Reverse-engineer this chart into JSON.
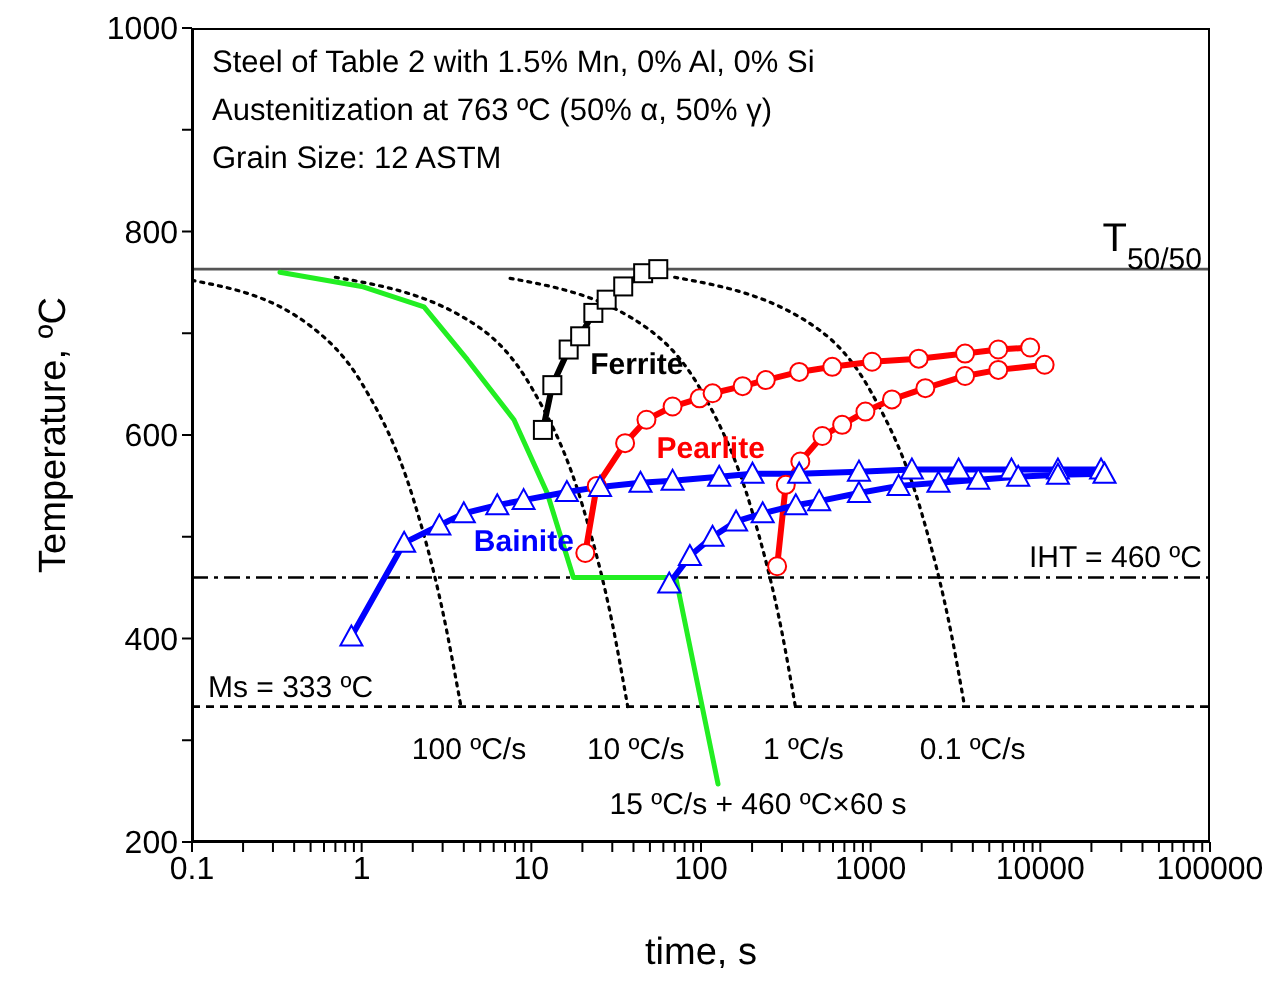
{
  "chart_data": {
    "type": "line",
    "xlabel": "time, s",
    "ylabel": "Temperature, ºC",
    "log": "x",
    "grid": false,
    "legend": false,
    "xlim": [
      0.1,
      100000
    ],
    "ylim": [
      200,
      1000
    ],
    "xticks": [
      0.1,
      {
        "value": 0.2,
        "label": null
      },
      {
        "value": 0.3,
        "label": null
      },
      {
        "value": 0.4,
        "label": null
      },
      {
        "value": 0.5,
        "label": null
      },
      {
        "value": 0.6,
        "label": null
      },
      {
        "value": 0.7,
        "label": null
      },
      {
        "value": 0.8,
        "label": null
      },
      {
        "value": 0.9,
        "label": null
      },
      1,
      {
        "value": 2,
        "label": null
      },
      {
        "value": 3,
        "label": null
      },
      {
        "value": 4,
        "label": null
      },
      {
        "value": 5,
        "label": null
      },
      {
        "value": 6,
        "label": null
      },
      {
        "value": 7,
        "label": null
      },
      {
        "value": 8,
        "label": null
      },
      {
        "value": 9,
        "label": null
      },
      10,
      {
        "value": 20,
        "label": null
      },
      {
        "value": 30,
        "label": null
      },
      {
        "value": 40,
        "label": null
      },
      {
        "value": 50,
        "label": null
      },
      {
        "value": 60,
        "label": null
      },
      {
        "value": 70,
        "label": null
      },
      {
        "value": 80,
        "label": null
      },
      {
        "value": 90,
        "label": null
      },
      100,
      {
        "value": 200,
        "label": null
      },
      {
        "value": 300,
        "label": null
      },
      {
        "value": 400,
        "label": null
      },
      {
        "value": 500,
        "label": null
      },
      {
        "value": 600,
        "label": null
      },
      {
        "value": 700,
        "label": null
      },
      {
        "value": 800,
        "label": null
      },
      {
        "value": 900,
        "label": null
      },
      1000,
      {
        "value": 2000,
        "label": null
      },
      {
        "value": 3000,
        "label": null
      },
      {
        "value": 4000,
        "label": null
      },
      {
        "value": 5000,
        "label": null
      },
      {
        "value": 6000,
        "label": null
      },
      {
        "value": 7000,
        "label": null
      },
      {
        "value": 8000,
        "label": null
      },
      {
        "value": 9000,
        "label": null
      },
      10000,
      {
        "value": 20000,
        "label": null
      },
      {
        "value": 30000,
        "label": null
      },
      {
        "value": 40000,
        "label": null
      },
      {
        "value": 50000,
        "label": null
      },
      {
        "value": 60000,
        "label": null
      },
      {
        "value": 70000,
        "label": null
      },
      {
        "value": 80000,
        "label": null
      },
      {
        "value": 90000,
        "label": null
      },
      100000
    ],
    "yticks": [
      200,
      {
        "value": 300,
        "label": null
      },
      400,
      {
        "value": 500,
        "label": null
      },
      600,
      {
        "value": 700,
        "label": null
      },
      800,
      {
        "value": 900,
        "label": null
      },
      1000
    ],
    "series": [
      {
        "type": "line",
        "name": "100 ºC/s",
        "color": "#000000",
        "line_style": "dotted",
        "marker": "none",
        "x": [
          0.1,
          0.5,
          1,
          2,
          3,
          3.85
        ],
        "values": [
          752,
          707,
          651,
          539,
          427,
          333
        ]
      },
      {
        "type": "line",
        "name": "10 ºC/s",
        "color": "#000000",
        "line_style": "dotted",
        "marker": "none",
        "x": [
          0.7,
          5,
          10,
          20,
          30,
          37
        ],
        "values": [
          755,
          705,
          647,
          531,
          415,
          333
        ]
      },
      {
        "type": "line",
        "name": "1 ºC/s",
        "color": "#000000",
        "line_style": "dotted",
        "marker": "none",
        "x": [
          7.5,
          50,
          100,
          200,
          300,
          360
        ],
        "values": [
          754,
          703,
          644,
          525,
          406,
          333
        ]
      },
      {
        "type": "line",
        "name": "0.1 ºC/s",
        "color": "#000000",
        "line_style": "dotted",
        "marker": "none",
        "x": [
          70,
          500,
          1000,
          2000,
          3000,
          3580
        ],
        "values": [
          755,
          703,
          643,
          523,
          403,
          333
        ]
      },
      {
        "type": "line",
        "color": "#22ee22",
        "line_style": "solid",
        "marker": "none",
        "x": [
          0.33,
          1,
          2.33,
          4.2,
          7.9,
          12.4,
          17.7,
          71,
          126
        ],
        "values": [
          760,
          746,
          726,
          674,
          615,
          543,
          460,
          460,
          257
        ]
      },
      {
        "type": "line",
        "name": "Ferrite",
        "color": "#000000",
        "line_style": "solid",
        "marker": "square",
        "x": [
          11.7,
          13.3,
          16.6,
          19.4,
          23.2,
          27.8,
          34.8,
          45.6,
          56
        ],
        "values": [
          605,
          649,
          684,
          697,
          720,
          733,
          746,
          759,
          763
        ]
      },
      {
        "type": "line",
        "name": "Pearlite",
        "color": "#ff0000",
        "line_style": "solid",
        "marker": "circle",
        "x": [
          20.8,
          24.3,
          35.7,
          47.7,
          68,
          98,
          117,
          176,
          241,
          379,
          594,
          1019,
          1918,
          3600,
          5650,
          8710
        ],
        "values": [
          484,
          550,
          592,
          615,
          628,
          636,
          641,
          648,
          654,
          662,
          667,
          672,
          675,
          680,
          684,
          686
        ]
      },
      {
        "type": "line",
        "color": "#ff0000",
        "line_style": "solid",
        "marker": "circle",
        "x": [
          281,
          316,
          385,
          519,
          679,
          931,
          1335,
          2100,
          3600,
          5650,
          10600
        ],
        "values": [
          471,
          551,
          574,
          599,
          610,
          623,
          635,
          646,
          658,
          664,
          669
        ]
      },
      {
        "type": "line",
        "name": "Bainite",
        "color": "#0000ff",
        "line_style": "solid",
        "marker": "triangle",
        "x": [
          0.87,
          1.78,
          2.87,
          4.0,
          6.3,
          9.0,
          16.2,
          25.4,
          44,
          68,
          128,
          201,
          379,
          853,
          1750,
          3300,
          6760,
          12700,
          22800
        ],
        "values": [
          402,
          494,
          511,
          523,
          531,
          536,
          544,
          549,
          553,
          555,
          559,
          562,
          562,
          564,
          566,
          566,
          566,
          566,
          566
        ]
      },
      {
        "type": "line",
        "color": "#0000ff",
        "line_style": "solid",
        "marker": "triangle",
        "x": [
          65,
          86,
          117,
          161,
          231,
          362,
          497,
          853,
          1460,
          2510,
          4310,
          7410,
          12700,
          23900
        ],
        "values": [
          454,
          481,
          500,
          515,
          523,
          531,
          535,
          543,
          550,
          553,
          556,
          559,
          561,
          562
        ]
      }
    ],
    "ref_lines": [
      {
        "axis": "y",
        "value": 763,
        "color": "#555555",
        "line_style": "solid",
        "label": "T$_{50/50}$"
      },
      {
        "axis": "y",
        "value": 460,
        "color": "#000000",
        "line_style": "dashdot",
        "label": "IHT = 460 ºC"
      },
      {
        "axis": "y",
        "value": 333,
        "color": "#000000",
        "line_style": "dashed",
        "label": "Ms = 333 ºC"
      }
    ],
    "annotations": [
      "Steel of Table 2 with 1.5% Mn, 0% Al, 0% Si",
      "Austenitization at 763 ºC (50% α, 50% γ)",
      "Grain Size: 12 ASTM",
      {
        "text": "15 ºC/s + 460 ºC×60 s",
        "x": 126,
        "y": 257
      }
    ]
  }
}
